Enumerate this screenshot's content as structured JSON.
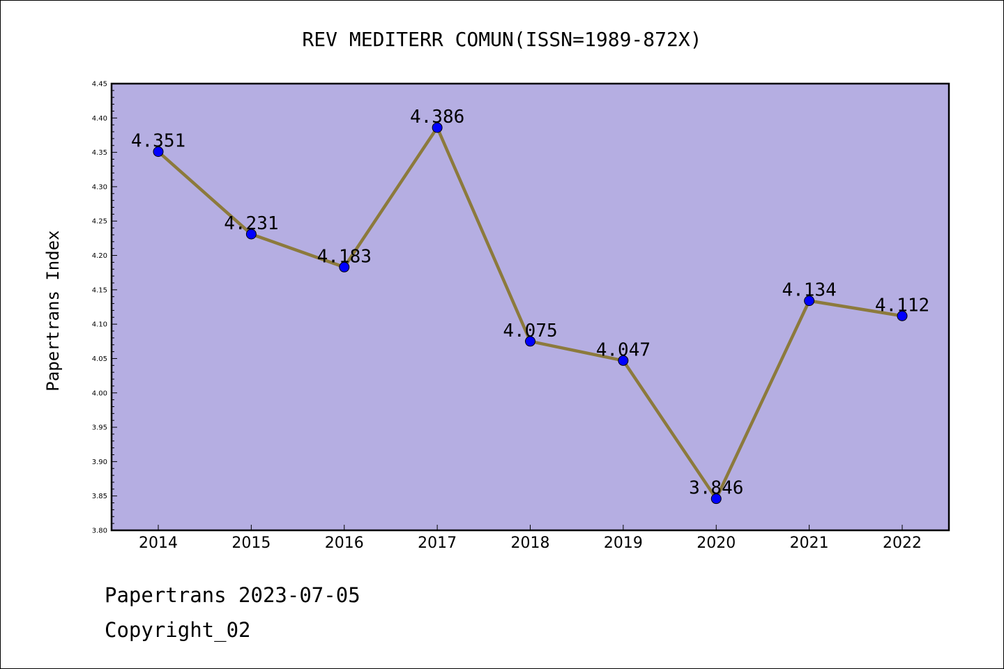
{
  "chart_data": {
    "type": "line",
    "title": "REV MEDITERR COMUN(ISSN=1989-872X)",
    "ylabel": "Papertrans Index",
    "xlabel": "",
    "categories": [
      "2014",
      "2015",
      "2016",
      "2017",
      "2018",
      "2019",
      "2020",
      "2021",
      "2022"
    ],
    "values": [
      4.351,
      4.231,
      4.183,
      4.386,
      4.075,
      4.047,
      3.846,
      4.134,
      4.112
    ],
    "data_labels": [
      "4.351",
      "4.231",
      "4.183",
      "4.386",
      "4.075",
      "4.047",
      "3.846",
      "4.134",
      "4.112"
    ],
    "ylim": [
      3.8,
      4.45
    ],
    "yticks": [
      "3.80",
      "3.85",
      "3.90",
      "3.95",
      "4.00",
      "4.05",
      "4.10",
      "4.15",
      "4.20",
      "4.25",
      "4.30",
      "4.35",
      "4.40",
      "4.45"
    ],
    "grid": false,
    "legend": "none",
    "colors": {
      "plot_background": "#b5aee2",
      "line": "#8c7a3c",
      "marker": "#0000ff"
    }
  },
  "footer": {
    "line1": "Papertrans 2023-07-05",
    "line2": "Copyright_02"
  }
}
